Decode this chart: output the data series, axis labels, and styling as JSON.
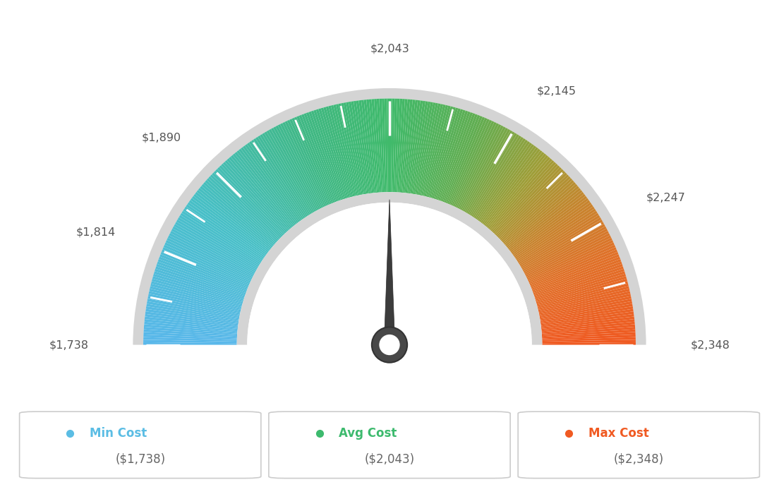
{
  "min_val": 1738,
  "max_val": 2348,
  "avg_val": 2043,
  "label_values": [
    1738,
    1814,
    1890,
    2043,
    2145,
    2247,
    2348
  ],
  "tick_values": [
    1738,
    1776,
    1814,
    1852,
    1890,
    1928,
    1966,
    2004,
    2043,
    2094,
    2145,
    2196,
    2247,
    2298,
    2348
  ],
  "legend_items": [
    {
      "label": "Min Cost",
      "value": "($1,738)",
      "color": "#5bbde4"
    },
    {
      "label": "Avg Cost",
      "value": "($2,043)",
      "color": "#3dba6e"
    },
    {
      "label": "Max Cost",
      "value": "($2,348)",
      "color": "#f05a22"
    }
  ],
  "background_color": "#ffffff",
  "color_stops": [
    [
      0.0,
      [
        0.35,
        0.72,
        0.92
      ]
    ],
    [
      0.2,
      [
        0.28,
        0.75,
        0.78
      ]
    ],
    [
      0.38,
      [
        0.25,
        0.72,
        0.52
      ]
    ],
    [
      0.5,
      [
        0.25,
        0.73,
        0.42
      ]
    ],
    [
      0.62,
      [
        0.38,
        0.68,
        0.32
      ]
    ],
    [
      0.72,
      [
        0.62,
        0.62,
        0.22
      ]
    ],
    [
      0.8,
      [
        0.78,
        0.52,
        0.18
      ]
    ],
    [
      0.88,
      [
        0.88,
        0.44,
        0.16
      ]
    ],
    [
      1.0,
      [
        0.94,
        0.35,
        0.13
      ]
    ]
  ]
}
